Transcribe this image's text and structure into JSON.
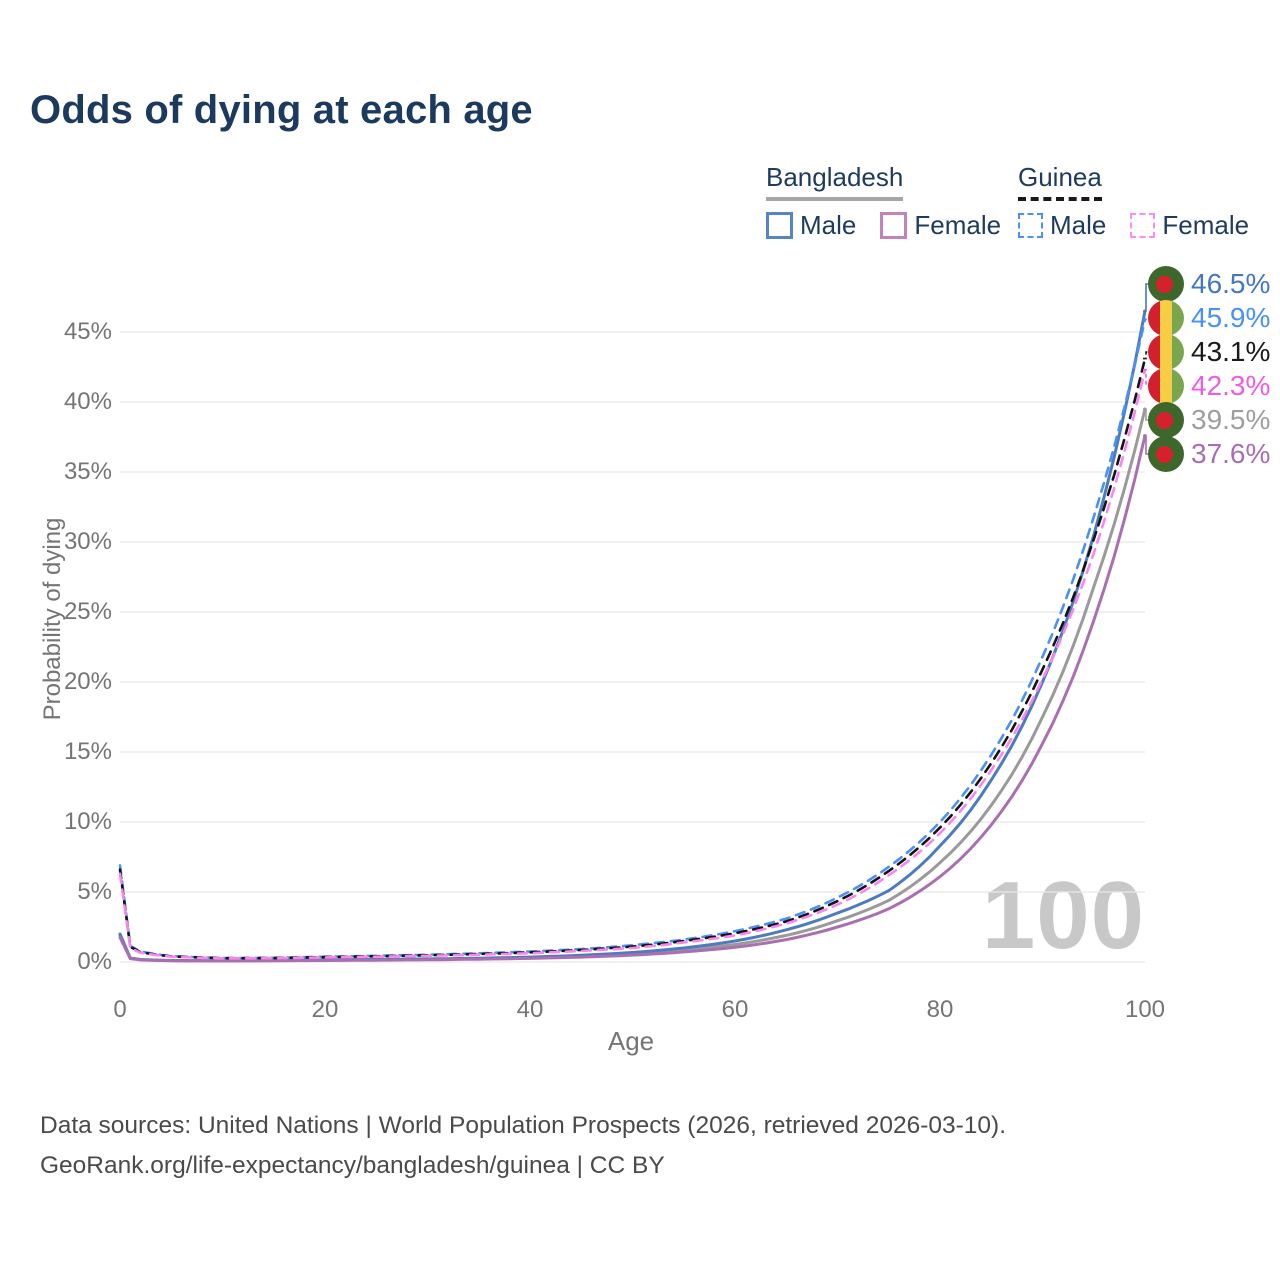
{
  "title": "Odds of dying at each age",
  "watermark": "100",
  "legend": {
    "groups": [
      {
        "name": "Bangladesh",
        "underline_style": "solid",
        "underline_color": "#a6a6a6",
        "items": [
          {
            "label": "Male",
            "color": "#5585c5",
            "dashed": false
          },
          {
            "label": "Female",
            "color": "#c183bb",
            "dashed": false
          }
        ]
      },
      {
        "name": "Guinea",
        "underline_style": "dashed",
        "underline_color": "#191919",
        "items": [
          {
            "label": "Male",
            "color": "#4a90f5",
            "dashed": true
          },
          {
            "label": "Female",
            "color": "#fb8df0",
            "dashed": true
          }
        ]
      }
    ]
  },
  "axes": {
    "x": {
      "title": "Age",
      "ticks": [
        0,
        20,
        40,
        60,
        80,
        100
      ]
    },
    "y": {
      "title": "Probability of dying",
      "ticks": [
        "0%",
        "5%",
        "10%",
        "15%",
        "20%",
        "25%",
        "30%",
        "35%",
        "40%",
        "45%"
      ]
    }
  },
  "end_labels": [
    {
      "text": "46.5%",
      "value_pct": 46.5,
      "country": "Bangladesh",
      "sex": "Male",
      "flag": "bd",
      "color": "#4377c4",
      "connector_dashed": false
    },
    {
      "text": "45.9%",
      "value_pct": 45.9,
      "country": "Guinea",
      "sex": "Male",
      "flag": "gn",
      "color": "#4a90f5",
      "connector_dashed": true
    },
    {
      "text": "43.1%",
      "value_pct": 43.1,
      "country": "Guinea",
      "sex": "Both",
      "flag": "gn",
      "color": "#1a1a1a",
      "connector_dashed": true
    },
    {
      "text": "42.3%",
      "value_pct": 42.3,
      "country": "Guinea",
      "sex": "Female",
      "flag": "gn",
      "color": "#ee5ce4",
      "connector_dashed": true
    },
    {
      "text": "39.5%",
      "value_pct": 39.5,
      "country": "Bangladesh",
      "sex": "Both",
      "flag": "bd",
      "color": "#9e9e9e",
      "connector_dashed": false
    },
    {
      "text": "37.6%",
      "value_pct": 37.6,
      "country": "Bangladesh",
      "sex": "Female",
      "flag": "bd",
      "color": "#a86db2",
      "connector_dashed": false
    }
  ],
  "footer": {
    "line1": "Data sources: United Nations | World Population Prospects (2026, retrieved 2026-03-10).",
    "line2": "GeoRank.org/life-expectancy/bangladesh/guinea | CC BY"
  },
  "chart_data": {
    "type": "line",
    "title": "Odds of dying at each age",
    "xlabel": "Age",
    "ylabel": "Probability of dying",
    "xlim": [
      0,
      100
    ],
    "ylim_pct": [
      0,
      47
    ],
    "grid": "horizontal",
    "legend_position": "top-right",
    "x": [
      0,
      1,
      2,
      5,
      10,
      15,
      20,
      25,
      30,
      35,
      40,
      45,
      50,
      55,
      60,
      65,
      70,
      75,
      80,
      85,
      90,
      95,
      100
    ],
    "series": [
      {
        "name": "Bangladesh Both",
        "color": "#9a9a9a",
        "dash": "solid",
        "values_pct": [
          1.9,
          0.26,
          0.16,
          0.1,
          0.08,
          0.1,
          0.13,
          0.16,
          0.19,
          0.23,
          0.3,
          0.41,
          0.58,
          0.85,
          1.25,
          1.9,
          2.95,
          4.4,
          7.1,
          11.2,
          17.5,
          26.8,
          39.5
        ]
      },
      {
        "name": "Bangladesh Male",
        "color": "#4c7cbd",
        "dash": "solid",
        "values_pct": [
          2.0,
          0.28,
          0.18,
          0.11,
          0.09,
          0.12,
          0.16,
          0.19,
          0.22,
          0.27,
          0.35,
          0.48,
          0.68,
          1.0,
          1.5,
          2.3,
          3.5,
          5.1,
          8.3,
          13.0,
          20.0,
          30.5,
          46.5
        ]
      },
      {
        "name": "Bangladesh Female",
        "color": "#aa6fb0",
        "dash": "solid",
        "values_pct": [
          1.75,
          0.24,
          0.15,
          0.09,
          0.07,
          0.09,
          0.11,
          0.13,
          0.16,
          0.2,
          0.26,
          0.35,
          0.49,
          0.72,
          1.05,
          1.6,
          2.5,
          3.8,
          6.1,
          9.8,
          15.6,
          24.4,
          37.6
        ]
      },
      {
        "name": "Guinea Male",
        "color": "#4a90f5",
        "dash": "dashed",
        "values_pct": [
          6.9,
          1.15,
          0.75,
          0.42,
          0.28,
          0.3,
          0.38,
          0.44,
          0.52,
          0.62,
          0.75,
          0.92,
          1.2,
          1.6,
          2.2,
          3.1,
          4.6,
          6.8,
          10.0,
          14.8,
          21.8,
          31.8,
          45.9
        ]
      },
      {
        "name": "Guinea Both",
        "color": "#141414",
        "dash": "dashed",
        "values_pct": [
          6.6,
          1.08,
          0.7,
          0.4,
          0.27,
          0.28,
          0.35,
          0.41,
          0.48,
          0.57,
          0.69,
          0.86,
          1.1,
          1.5,
          2.05,
          2.9,
          4.35,
          6.5,
          9.6,
          14.2,
          20.9,
          30.2,
          43.1
        ]
      },
      {
        "name": "Guinea Female",
        "color": "#f985ee",
        "dash": "dashed",
        "values_pct": [
          6.3,
          1.0,
          0.66,
          0.38,
          0.26,
          0.27,
          0.33,
          0.38,
          0.44,
          0.52,
          0.63,
          0.79,
          1.0,
          1.4,
          1.9,
          2.75,
          4.1,
          6.2,
          9.2,
          13.7,
          20.2,
          29.2,
          42.3
        ]
      }
    ]
  }
}
